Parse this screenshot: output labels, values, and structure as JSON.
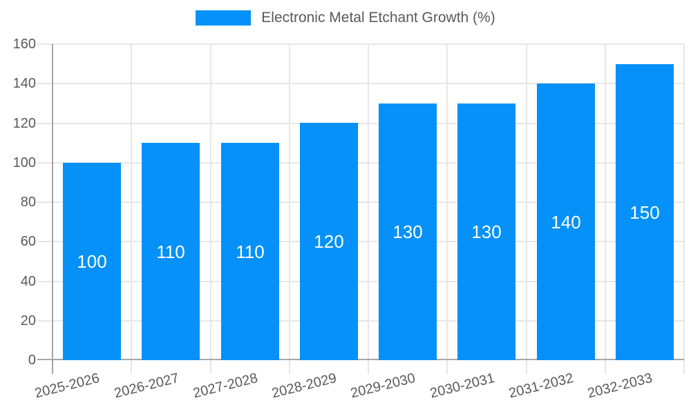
{
  "chart_data": {
    "type": "bar",
    "legend_label": "Electronic Metal Etchant Growth (%)",
    "legend_position": "top-center",
    "categories": [
      "2025-2026",
      "2026-2027",
      "2027-2028",
      "2028-2029",
      "2029-2030",
      "2030-2031",
      "2031-2032",
      "2032-2033"
    ],
    "values": [
      100,
      110,
      110,
      120,
      130,
      130,
      140,
      150
    ],
    "bar_labels": [
      "100",
      "110",
      "110",
      "120",
      "130",
      "130",
      "140",
      "150"
    ],
    "bar_label_position": "inside-middle",
    "xlabel": "",
    "ylabel": "",
    "ylim": [
      0,
      160
    ],
    "yticks": [
      0,
      20,
      40,
      60,
      80,
      100,
      120,
      140,
      160
    ],
    "grid": true,
    "colors": {
      "bar": "#0591f7",
      "grid": "#e6e6e6",
      "axis": "#a6a6a6",
      "tick_text": "#595959",
      "legend_text": "#595959",
      "bar_label_text": "#ffffff",
      "background": "#ffffff"
    }
  }
}
